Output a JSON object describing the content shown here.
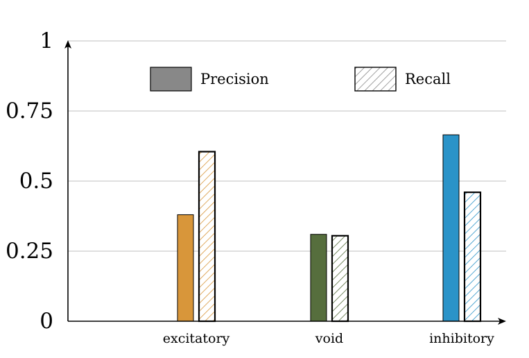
{
  "chart_data": {
    "type": "bar",
    "categories": [
      "excitatory",
      "void",
      "inhibitory"
    ],
    "series": [
      {
        "name": "Precision",
        "style": "solid",
        "values": [
          0.38,
          0.31,
          0.665
        ]
      },
      {
        "name": "Recall",
        "style": "hatched",
        "values": [
          0.605,
          0.305,
          0.46
        ]
      }
    ],
    "category_colors": [
      "#d8963a",
      "#566e3d",
      "#2a93c8"
    ],
    "legend_colors": {
      "solid": "#888888",
      "hatched": "#888888"
    },
    "yticks": [
      {
        "value": 0,
        "label": "0"
      },
      {
        "value": 0.25,
        "label": "0.25"
      },
      {
        "value": 0.5,
        "label": "0.5"
      },
      {
        "value": 0.75,
        "label": "0.75"
      },
      {
        "value": 1,
        "label": "1"
      }
    ],
    "ylim": [
      0,
      1
    ],
    "grid": true,
    "legend_position": "top"
  }
}
